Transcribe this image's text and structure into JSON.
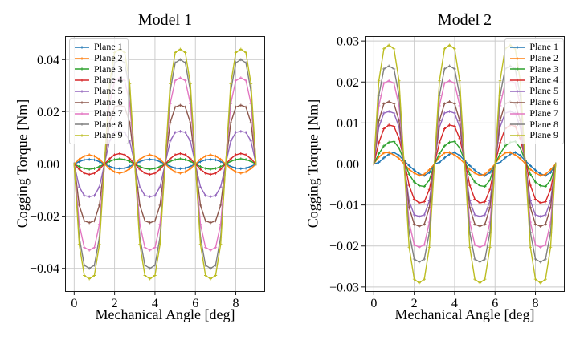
{
  "figure": {
    "background": "#ffffff",
    "grid_color": "#c9c9c9",
    "spine_color": "#1a1a1a"
  },
  "chart_data": [
    {
      "type": "line",
      "title": "Model 1",
      "xlabel": "Mechanical Angle [deg]",
      "ylabel": "Cogging Torque [Nm]",
      "xlim": [
        -0.45,
        9.45
      ],
      "ylim": [
        -0.049,
        0.049
      ],
      "xticks": [
        0,
        2,
        4,
        6,
        8
      ],
      "xtick_labels": [
        "0",
        "2",
        "4",
        "6",
        "8"
      ],
      "yticks": [
        0.04,
        0.02,
        0,
        -0.02,
        -0.04
      ],
      "ytick_labels": [
        "0.04",
        "0.02",
        "0.00",
        "−0.02",
        "−0.04"
      ],
      "grid": true,
      "legend_position": "upper-left",
      "x_unit": "deg",
      "y_unit": "Nm",
      "x_sampling": {
        "start": 0,
        "step": 0.25,
        "points": 37
      },
      "waveform_period_deg": 3,
      "series": [
        {
          "name": "Plane 1",
          "color": "#1f77b4",
          "marker": "plus",
          "cycle_values_nm": [
            0,
            0.0009,
            0.0016,
            0.0018,
            0.0016,
            0.0009,
            0,
            -0.0009,
            -0.0016,
            -0.0018,
            -0.0016,
            -0.0009
          ]
        },
        {
          "name": "Plane 2",
          "color": "#ff7f0e",
          "marker": "plus",
          "cycle_values_nm": [
            0,
            0.0018,
            0.003,
            0.0035,
            0.003,
            0.0018,
            0,
            -0.0018,
            -0.003,
            -0.0035,
            -0.003,
            -0.0018
          ]
        },
        {
          "name": "Plane 3",
          "color": "#2ca02c",
          "marker": "plus",
          "cycle_values_nm": [
            0,
            -0.001,
            -0.0017,
            -0.002,
            -0.0017,
            -0.001,
            0,
            0.001,
            0.0017,
            0.002,
            0.0017,
            0.001
          ]
        },
        {
          "name": "Plane 4",
          "color": "#d62728",
          "marker": "plus",
          "cycle_values_nm": [
            0,
            -0.002,
            -0.0035,
            -0.004,
            -0.0035,
            -0.002,
            0,
            0.002,
            0.0035,
            0.004,
            0.0035,
            0.002
          ]
        },
        {
          "name": "Plane 5",
          "color": "#9467bd",
          "marker": "plus",
          "cycle_values_nm": [
            0,
            -0.0088,
            -0.0121,
            -0.0125,
            -0.0121,
            -0.0088,
            0,
            0.0088,
            0.0121,
            0.0125,
            0.0121,
            0.0088
          ]
        },
        {
          "name": "Plane 6",
          "color": "#8c564b",
          "marker": "plus",
          "cycle_values_nm": [
            0,
            -0.0158,
            -0.0218,
            -0.0225,
            -0.0218,
            -0.0158,
            0,
            0.0158,
            0.0218,
            0.0225,
            0.0218,
            0.0158
          ]
        },
        {
          "name": "Plane 7",
          "color": "#e377c2",
          "marker": "plus",
          "cycle_values_nm": [
            0,
            -0.0231,
            -0.032,
            -0.033,
            -0.032,
            -0.0231,
            0,
            0.0231,
            0.032,
            0.033,
            0.032,
            0.0231
          ]
        },
        {
          "name": "Plane 8",
          "color": "#7f7f7f",
          "marker": "plus",
          "cycle_values_nm": [
            0,
            -0.028,
            -0.0388,
            -0.04,
            -0.0388,
            -0.028,
            0,
            0.028,
            0.0388,
            0.04,
            0.0388,
            0.028
          ]
        },
        {
          "name": "Plane 9",
          "color": "#bcbd22",
          "marker": "plus",
          "cycle_values_nm": [
            0,
            -0.0308,
            -0.0427,
            -0.044,
            -0.0427,
            -0.0308,
            0,
            0.0308,
            0.0427,
            0.044,
            0.0427,
            0.0308
          ]
        }
      ]
    },
    {
      "type": "line",
      "title": "Model 2",
      "xlabel": "Mechanical Angle [deg]",
      "ylabel": "Cogging Torque [Nm]",
      "xlim": [
        -0.45,
        9.45
      ],
      "ylim": [
        -0.0312,
        0.0312
      ],
      "xticks": [
        0,
        2,
        4,
        6,
        8
      ],
      "xtick_labels": [
        "0",
        "2",
        "4",
        "6",
        "8"
      ],
      "yticks": [
        0.03,
        0.02,
        0.01,
        0,
        -0.01,
        -0.02,
        -0.03
      ],
      "ytick_labels": [
        "0.03",
        "0.02",
        "0.01",
        "0.00",
        "−0.01",
        "−0.02",
        "−0.03"
      ],
      "grid": true,
      "legend_position": "upper-right",
      "x_unit": "deg",
      "y_unit": "Nm",
      "x_sampling": {
        "start": 0,
        "step": 0.25,
        "points": 37
      },
      "waveform_period_deg": 3,
      "series": [
        {
          "name": "Plane 1",
          "color": "#1f77b4",
          "marker": "plus",
          "cycle_values_nm": [
            0,
            0.0004,
            0.0015,
            0.0024,
            0.0028,
            0.0021,
            0.0008,
            -0.0004,
            -0.0015,
            -0.0024,
            -0.0028,
            -0.0021
          ]
        },
        {
          "name": "Plane 2",
          "color": "#ff7f0e",
          "marker": "plus",
          "cycle_values_nm": [
            0,
            0.0017,
            0.0027,
            0.0028,
            0.0022,
            0.0013,
            0.0001,
            -0.0013,
            -0.0022,
            -0.0028,
            -0.0025,
            -0.0014
          ]
        },
        {
          "name": "Plane 3",
          "color": "#2ca02c",
          "marker": "plus",
          "cycle_values_nm": [
            0,
            0.0025,
            0.0044,
            0.0053,
            0.0055,
            0.0039,
            0.0008,
            -0.0025,
            -0.0044,
            -0.0053,
            -0.0055,
            -0.0039
          ]
        },
        {
          "name": "Plane 4",
          "color": "#d62728",
          "marker": "plus",
          "cycle_values_nm": [
            0,
            0.0052,
            0.0086,
            0.0095,
            0.0092,
            0.0062,
            0.001,
            -0.0052,
            -0.0086,
            -0.0095,
            -0.0092,
            -0.0062
          ]
        },
        {
          "name": "Plane 5",
          "color": "#9467bd",
          "marker": "plus",
          "cycle_values_nm": [
            0,
            0.009,
            0.0124,
            0.0128,
            0.0124,
            0.009,
            0,
            -0.009,
            -0.0124,
            -0.0128,
            -0.0124,
            -0.009
          ]
        },
        {
          "name": "Plane 6",
          "color": "#8c564b",
          "marker": "plus",
          "cycle_values_nm": [
            0,
            0.0106,
            0.0147,
            0.0152,
            0.0147,
            0.0106,
            0,
            -0.0106,
            -0.0147,
            -0.0152,
            -0.0147,
            -0.0106
          ]
        },
        {
          "name": "Plane 7",
          "color": "#e377c2",
          "marker": "plus",
          "cycle_values_nm": [
            0,
            0.0142,
            0.0197,
            0.0203,
            0.0197,
            0.0142,
            0,
            -0.0142,
            -0.0197,
            -0.0203,
            -0.0197,
            -0.0142
          ]
        },
        {
          "name": "Plane 8",
          "color": "#7f7f7f",
          "marker": "plus",
          "cycle_values_nm": [
            0,
            0.0167,
            0.0232,
            0.0239,
            0.0232,
            0.0167,
            0,
            -0.0167,
            -0.0232,
            -0.0239,
            -0.0232,
            -0.0167
          ]
        },
        {
          "name": "Plane 9",
          "color": "#bcbd22",
          "marker": "plus",
          "cycle_values_nm": [
            0,
            0.0203,
            0.0281,
            0.029,
            0.0281,
            0.0203,
            0,
            -0.0203,
            -0.0281,
            -0.029,
            -0.0281,
            -0.0203
          ]
        }
      ]
    }
  ]
}
